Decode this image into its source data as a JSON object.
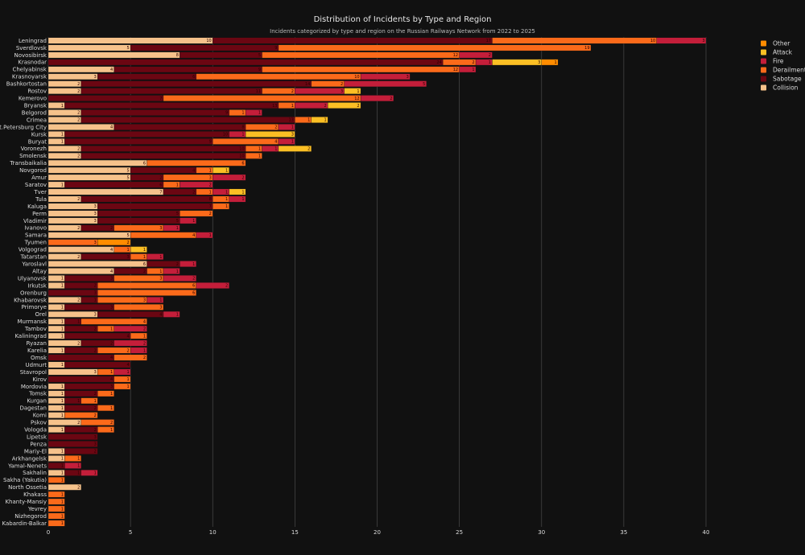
{
  "chart_data": {
    "type": "bar",
    "orientation": "horizontal",
    "stacked": true,
    "title": "Distribution of Incidents by Type and Region",
    "subtitle": "Incidents categorized by type and region on the Russian Railways Network from 2022 to 2025",
    "xlim": [
      0,
      41
    ],
    "xticks": [
      0,
      5,
      10,
      15,
      20,
      25,
      30,
      35,
      40
    ],
    "grid": true,
    "legend_position": "top-right",
    "categories": [
      "Leningrad",
      "Sverdlovsk",
      "Novosibirsk",
      "Krasnodar",
      "Chelyabinsk",
      "Krasnoyarsk",
      "Bashkortostan",
      "Rostov",
      "Kemerovo",
      "Bryansk",
      "Belgorod",
      "Crimea",
      "St.Petersburg City",
      "Kursk",
      "Buryat",
      "Voronezh",
      "Smolensk",
      "Transbaikalia",
      "Novgorod",
      "Amur",
      "Saratov",
      "Tver",
      "Tula",
      "Kaluga",
      "Perm",
      "Vladimir",
      "Ivanovo",
      "Samara",
      "Tyumen",
      "Volgograd",
      "Tatarstan",
      "Yaroslavl",
      "Altay",
      "Ulyanovsk",
      "Irkutsk",
      "Orenburg",
      "Khabarovsk",
      "Primorye",
      "Orel",
      "Murmansk",
      "Tambov",
      "Kaliningrad",
      "Ryazan",
      "Karelia",
      "Omsk",
      "Udmurt",
      "Stavropol",
      "Kirov",
      "Mordovia",
      "Tomsk",
      "Kurgan",
      "Dagestan",
      "Komi",
      "Pskov",
      "Vologda",
      "Lipetsk",
      "Penza",
      "Mariy-El",
      "Arkhangelsk",
      "Yamal-Nenets",
      "Sakhalin",
      "Sakha (Yakutia)",
      "North Ossetia",
      "Khakass",
      "Khanty-Mansiy",
      "Yevrey",
      "Nizhegorod",
      "Kabardin-Balkar"
    ],
    "series": [
      {
        "name": "Collision",
        "color": "#f6c28b",
        "values": [
          10,
          5,
          8,
          0,
          4,
          3,
          2,
          2,
          0,
          1,
          2,
          2,
          4,
          1,
          1,
          2,
          2,
          6,
          5,
          5,
          1,
          7,
          2,
          3,
          3,
          3,
          2,
          5,
          0,
          4,
          2,
          6,
          4,
          1,
          1,
          0,
          2,
          1,
          3,
          1,
          1,
          1,
          2,
          1,
          0,
          1,
          3,
          0,
          1,
          1,
          1,
          1,
          1,
          2,
          1,
          0,
          0,
          1,
          1,
          0,
          1,
          0,
          2,
          0,
          0,
          0,
          0,
          0
        ]
      },
      {
        "name": "Sabotage",
        "color": "#6b0612",
        "values": [
          17,
          9,
          5,
          24,
          9,
          6,
          14,
          11,
          7,
          13,
          9,
          13,
          8,
          10,
          9,
          10,
          10,
          0,
          4,
          2,
          6,
          2,
          8,
          7,
          5,
          5,
          2,
          0,
          0,
          0,
          3,
          2,
          2,
          3,
          2,
          3,
          1,
          3,
          4,
          1,
          2,
          4,
          2,
          2,
          4,
          4,
          0,
          4,
          3,
          2,
          1,
          2,
          0,
          0,
          2,
          3,
          3,
          2,
          0,
          1,
          1,
          0,
          0,
          0,
          0,
          0,
          0,
          0
        ]
      },
      {
        "name": "Derailment",
        "color": "#fb6a1a",
        "values": [
          10,
          19,
          12,
          2,
          12,
          10,
          2,
          2,
          12,
          1,
          1,
          1,
          2,
          0,
          4,
          1,
          1,
          6,
          1,
          3,
          1,
          1,
          1,
          1,
          2,
          0,
          3,
          4,
          3,
          1,
          1,
          0,
          1,
          3,
          6,
          6,
          3,
          3,
          0,
          4,
          1,
          1,
          0,
          2,
          2,
          0,
          1,
          1,
          1,
          1,
          1,
          1,
          2,
          2,
          1,
          0,
          0,
          0,
          1,
          0,
          0,
          1,
          0,
          1,
          1,
          1,
          1,
          1
        ]
      },
      {
        "name": "Fire",
        "color": "#c41e3a",
        "values": [
          3,
          0,
          2,
          1,
          1,
          3,
          5,
          3,
          2,
          2,
          1,
          0,
          1,
          1,
          1,
          1,
          0,
          0,
          0,
          2,
          2,
          1,
          1,
          0,
          0,
          1,
          1,
          1,
          0,
          0,
          1,
          1,
          1,
          2,
          2,
          0,
          1,
          0,
          1,
          0,
          2,
          0,
          2,
          1,
          0,
          0,
          1,
          0,
          0,
          0,
          0,
          0,
          0,
          0,
          0,
          0,
          0,
          0,
          0,
          1,
          1,
          0,
          0,
          0,
          0,
          0,
          0,
          0
        ]
      },
      {
        "name": "Attack",
        "color": "#fbbf24",
        "values": [
          0,
          0,
          0,
          3,
          0,
          0,
          0,
          1,
          0,
          2,
          0,
          1,
          0,
          3,
          0,
          2,
          0,
          0,
          1,
          0,
          0,
          1,
          0,
          0,
          0,
          0,
          0,
          0,
          0,
          1,
          0,
          0,
          0,
          0,
          0,
          0,
          0,
          0,
          0,
          0,
          0,
          0,
          0,
          0,
          0,
          0,
          0,
          0,
          0,
          0,
          0,
          0,
          0,
          0,
          0,
          0,
          0,
          0,
          0,
          0,
          0,
          0,
          0,
          0,
          0,
          0,
          0,
          0
        ]
      },
      {
        "name": "Other",
        "color": "#ff8c00",
        "values": [
          0,
          0,
          0,
          1,
          0,
          0,
          0,
          0,
          0,
          0,
          0,
          0,
          0,
          0,
          0,
          0,
          0,
          0,
          0,
          0,
          0,
          0,
          0,
          0,
          0,
          0,
          0,
          0,
          2,
          0,
          0,
          0,
          0,
          0,
          0,
          0,
          0,
          0,
          0,
          0,
          0,
          0,
          0,
          0,
          0,
          0,
          0,
          0,
          0,
          0,
          0,
          0,
          0,
          0,
          0,
          0,
          0,
          0,
          0,
          0,
          0,
          0,
          0,
          0,
          0,
          0,
          0,
          0
        ]
      }
    ],
    "legend_order": [
      "Other",
      "Attack",
      "Fire",
      "Derailment",
      "Sabotage",
      "Collision"
    ]
  }
}
